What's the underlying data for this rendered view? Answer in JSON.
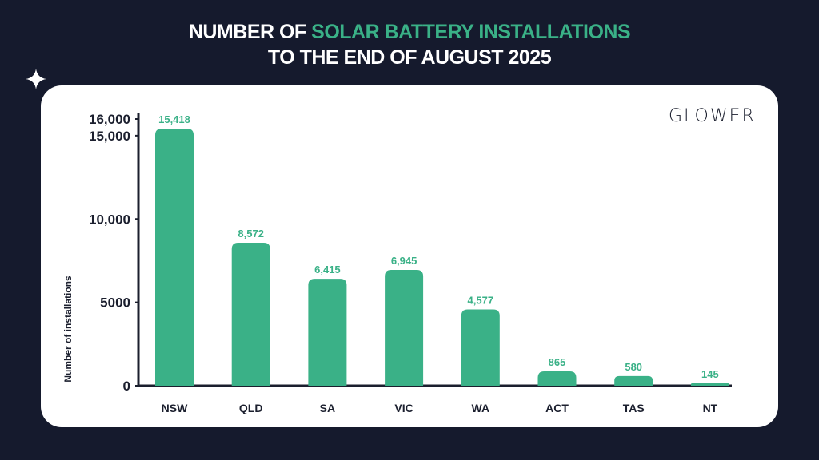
{
  "title": {
    "part1": "NUMBER OF ",
    "highlight": "SOLAR BATTERY INSTALLATIONS",
    "line2": "TO THE END OF AUGUST 2025"
  },
  "logo": "GLOWER",
  "colors": {
    "background": "#151a2d",
    "bar": "#3ab187",
    "axis": "#1b1f2e",
    "card": "#ffffff"
  },
  "chart_data": {
    "type": "bar",
    "title": "NUMBER OF SOLAR BATTERY INSTALLATIONS TO THE END OF AUGUST 2025",
    "xlabel": "",
    "ylabel": "Number of installations",
    "categories": [
      "NSW",
      "QLD",
      "SA",
      "VIC",
      "WA",
      "ACT",
      "TAS",
      "NT"
    ],
    "values": [
      15418,
      8572,
      6415,
      6945,
      4577,
      865,
      580,
      145
    ],
    "data_labels": [
      "15,418",
      "8,572",
      "6,415",
      "6,945",
      "4,577",
      "865",
      "580",
      "145"
    ],
    "yticks": [
      0,
      5000,
      10000,
      15000,
      16000
    ],
    "ytick_labels": [
      "0",
      "5000",
      "10,000",
      "15,000",
      "16,000"
    ],
    "ylim": [
      0,
      16000
    ],
    "grid": false
  }
}
